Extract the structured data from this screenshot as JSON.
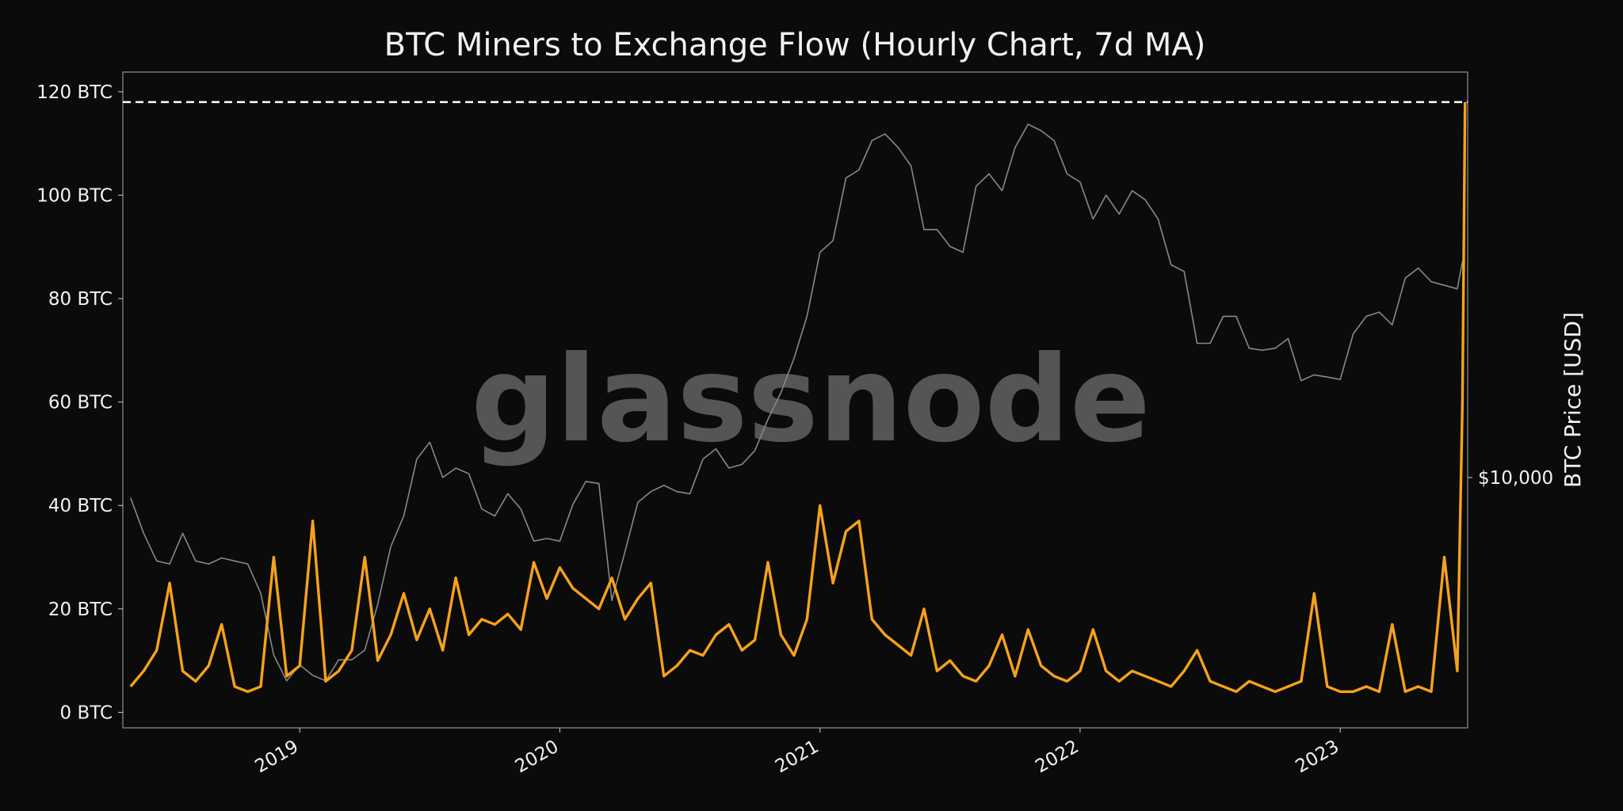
{
  "chart_data": {
    "type": "line",
    "title": "BTC Miners to Exchange Flow (Hourly Chart, 7d MA)",
    "watermark": "glassnode",
    "y2_label": "BTC Price [USD]",
    "x": [
      2018.35,
      2018.4,
      2018.45,
      2018.5,
      2018.55,
      2018.6,
      2018.65,
      2018.7,
      2018.75,
      2018.8,
      2018.85,
      2018.9,
      2018.95,
      2019.0,
      2019.05,
      2019.1,
      2019.15,
      2019.2,
      2019.25,
      2019.3,
      2019.35,
      2019.4,
      2019.45,
      2019.5,
      2019.55,
      2019.6,
      2019.65,
      2019.7,
      2019.75,
      2019.8,
      2019.85,
      2019.9,
      2019.95,
      2020.0,
      2020.05,
      2020.1,
      2020.15,
      2020.2,
      2020.25,
      2020.3,
      2020.35,
      2020.4,
      2020.45,
      2020.5,
      2020.55,
      2020.6,
      2020.65,
      2020.7,
      2020.75,
      2020.8,
      2020.85,
      2020.9,
      2020.95,
      2021.0,
      2021.05,
      2021.1,
      2021.15,
      2021.2,
      2021.25,
      2021.3,
      2021.35,
      2021.4,
      2021.45,
      2021.5,
      2021.55,
      2021.6,
      2021.65,
      2021.7,
      2021.75,
      2021.8,
      2021.85,
      2021.9,
      2021.95,
      2022.0,
      2022.05,
      2022.1,
      2022.15,
      2022.2,
      2022.25,
      2022.3,
      2022.35,
      2022.4,
      2022.45,
      2022.5,
      2022.55,
      2022.6,
      2022.65,
      2022.7,
      2022.75,
      2022.8,
      2022.85,
      2022.9,
      2022.95,
      2023.0,
      2023.05,
      2023.1,
      2023.15,
      2023.2,
      2023.25,
      2023.3,
      2023.35,
      2023.4,
      2023.45,
      2023.47,
      2023.48
    ],
    "series": [
      {
        "color": "#888888",
        "axis": "y2",
        "values": [
          9000,
          7500,
          6500,
          6400,
          7500,
          6500,
          6400,
          6600,
          6500,
          6400,
          5500,
          4000,
          3500,
          3800,
          3600,
          3500,
          3900,
          3900,
          4100,
          5200,
          7000,
          8200,
          11000,
          12000,
          10000,
          10500,
          10200,
          8500,
          8200,
          9200,
          8500,
          7200,
          7300,
          7200,
          8700,
          9800,
          9700,
          5300,
          6800,
          8800,
          9300,
          9600,
          9300,
          9200,
          11000,
          11600,
          10500,
          10700,
          11500,
          13500,
          15500,
          18500,
          23000,
          32000,
          34000,
          47000,
          49000,
          57000,
          59000,
          55000,
          50000,
          36000,
          36000,
          33000,
          32000,
          45000,
          48000,
          44000,
          55000,
          62000,
          60000,
          57000,
          48000,
          46000,
          38000,
          43000,
          39000,
          44000,
          42000,
          38000,
          30000,
          29000,
          20000,
          20000,
          23000,
          23000,
          19500,
          19300,
          19500,
          20500,
          16500,
          17000,
          16800,
          16600,
          21000,
          23000,
          23500,
          22000,
          28000,
          29500,
          27500,
          27000,
          26500,
          30500,
          30500
        ]
      },
      {
        "color": "#f7a21b",
        "axis": "y",
        "values": [
          5,
          8,
          12,
          25,
          8,
          6,
          9,
          17,
          5,
          4,
          5,
          30,
          7,
          9,
          37,
          6,
          8,
          12,
          30,
          10,
          15,
          23,
          14,
          20,
          12,
          26,
          15,
          18,
          17,
          19,
          16,
          29,
          22,
          28,
          24,
          22,
          20,
          26,
          18,
          22,
          25,
          7,
          9,
          12,
          11,
          15,
          17,
          12,
          14,
          29,
          15,
          11,
          18,
          40,
          25,
          35,
          37,
          18,
          15,
          13,
          11,
          20,
          8,
          10,
          7,
          6,
          9,
          15,
          7,
          16,
          9,
          7,
          6,
          8,
          16,
          8,
          6,
          8,
          7,
          6,
          5,
          8,
          12,
          6,
          5,
          4,
          6,
          5,
          4,
          5,
          6,
          23,
          5,
          4,
          4,
          5,
          4,
          17,
          4,
          5,
          4,
          30,
          8,
          60,
          118
        ]
      }
    ],
    "hline": 118,
    "xlim": [
      2018.32,
      2023.49
    ],
    "xticks": [
      2019,
      2020,
      2021,
      2022,
      2023
    ],
    "ylim": [
      -3,
      123.8
    ],
    "yticks": [
      {
        "value": 0,
        "label": "0 BTC"
      },
      {
        "value": 20,
        "label": "20 BTC"
      },
      {
        "value": 40,
        "label": "40 BTC"
      },
      {
        "value": 60,
        "label": "60 BTC"
      },
      {
        "value": 80,
        "label": "80 BTC"
      },
      {
        "value": 100,
        "label": "100 BTC"
      },
      {
        "value": 120,
        "label": "120 BTC"
      }
    ],
    "y2lim": [
      2745,
      81200
    ],
    "y2scale": "log",
    "y2ticks": [
      {
        "value": 10000,
        "label": "$10,000"
      }
    ],
    "grid": false
  }
}
